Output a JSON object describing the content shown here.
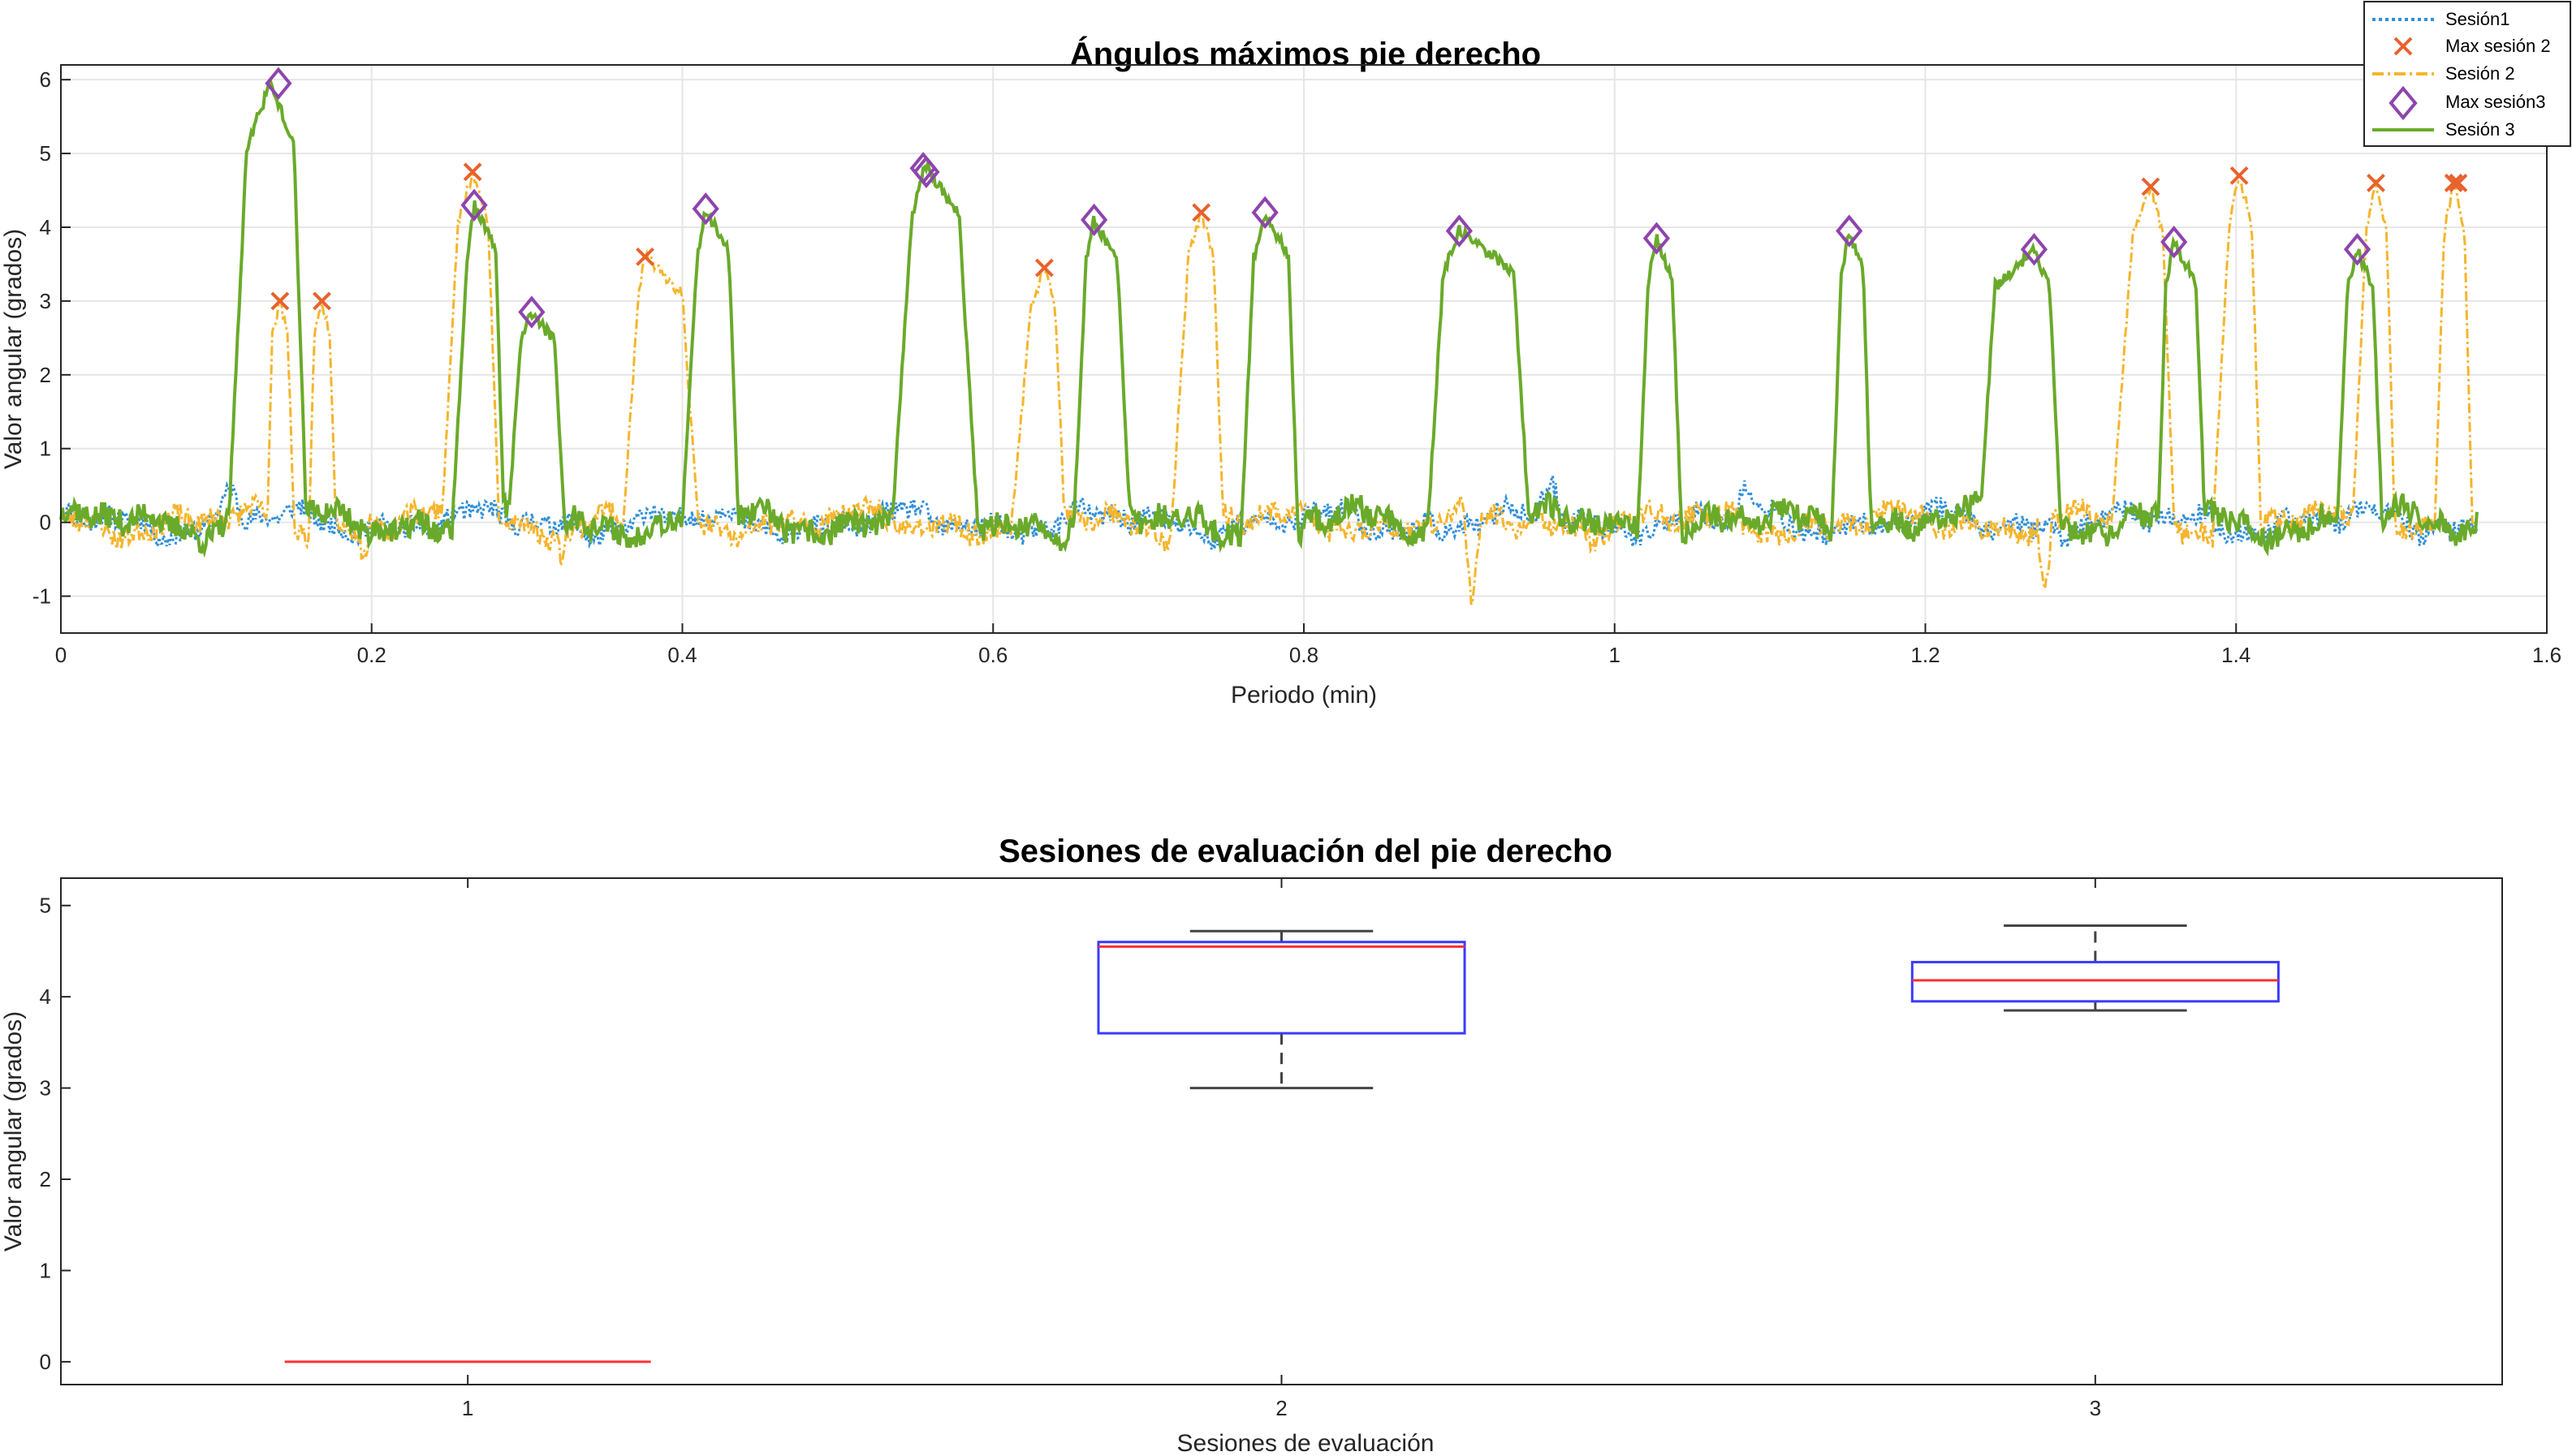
{
  "colors": {
    "sesion1": "#2f8fd8",
    "sesion2": "#f5b52c",
    "max_sesion2": "#e8622c",
    "max_sesion3": "#8e44ad",
    "sesion3": "#6aaa2a",
    "box_edge": "#3b3bff",
    "median": "#ff3030",
    "whisker": "#444444",
    "axis": "#262626",
    "grid": "#e6e6e6"
  },
  "chart_data": [
    {
      "type": "line",
      "title": "Ángulos máximos pie derecho",
      "xlabel": "Periodo (min)",
      "ylabel": "Valor angular (grados)",
      "xlim": [
        0,
        1.6
      ],
      "ylim": [
        -1.5,
        6.2
      ],
      "xticks": [
        "0",
        "0.2",
        "0.4",
        "0.6",
        "0.8",
        "1",
        "1.2",
        "1.4",
        "1.6"
      ],
      "yticks": [
        "-1",
        "0",
        "1",
        "2",
        "3",
        "4",
        "5",
        "6"
      ],
      "grid": true,
      "legend_position": "top-right",
      "legend": [
        "Sesión1",
        "Max sesión 2",
        "Sesión 2",
        "Max sesión3",
        "Sesión 3"
      ],
      "sesion3_peaks": [
        [
          0.108,
          0.12,
          0.135,
          0.15,
          0.158,
          5.95
        ],
        [
          0.252,
          0.262,
          0.266,
          0.28,
          0.285,
          4.3
        ],
        [
          0.288,
          0.296,
          0.303,
          0.318,
          0.324,
          2.85
        ],
        [
          0.4,
          0.41,
          0.415,
          0.43,
          0.436,
          4.25
        ],
        [
          0.535,
          0.548,
          0.556,
          0.578,
          0.59,
          4.85
        ],
        [
          0.652,
          0.66,
          0.665,
          0.68,
          0.688,
          4.1
        ],
        [
          0.76,
          0.768,
          0.775,
          0.79,
          0.796,
          4.2
        ],
        [
          0.88,
          0.89,
          0.9,
          0.935,
          0.945,
          3.95
        ],
        [
          1.015,
          1.022,
          1.027,
          1.037,
          1.043,
          3.85
        ],
        [
          1.14,
          1.146,
          1.151,
          1.16,
          1.165,
          3.95
        ],
        [
          1.235,
          1.245,
          1.27,
          1.28,
          1.287,
          3.7
        ],
        [
          1.35,
          1.355,
          1.36,
          1.374,
          1.38,
          3.8
        ],
        [
          1.465,
          1.472,
          1.478,
          1.488,
          1.494,
          3.7
        ]
      ],
      "sesion2_peaks": [
        [
          0.133,
          0.136,
          0.141,
          0.146,
          0.15,
          3.0
        ],
        [
          0.16,
          0.163,
          0.168,
          0.173,
          0.177,
          3.0
        ],
        [
          0.245,
          0.256,
          0.265,
          0.275,
          0.282,
          4.75
        ],
        [
          0.362,
          0.372,
          0.376,
          0.4,
          0.41,
          3.6
        ],
        [
          0.612,
          0.625,
          0.633,
          0.64,
          0.646,
          3.45
        ],
        [
          0.715,
          0.726,
          0.734,
          0.742,
          0.748,
          4.2
        ],
        [
          1.32,
          1.334,
          1.345,
          1.353,
          1.36,
          4.55
        ],
        [
          1.385,
          1.396,
          1.402,
          1.41,
          1.416,
          4.7
        ],
        [
          1.475,
          1.484,
          1.49,
          1.497,
          1.502,
          4.6
        ],
        [
          1.528,
          1.534,
          1.54,
          1.547,
          1.552,
          4.6
        ]
      ],
      "series": [
        {
          "name": "Max sesión 2",
          "marker": "x",
          "x": [
            0.141,
            0.168,
            0.265,
            0.376,
            0.633,
            0.734,
            1.345,
            1.402,
            1.49,
            1.54,
            1.543
          ],
          "y": [
            3.0,
            3.0,
            4.75,
            3.6,
            3.45,
            4.2,
            4.55,
            4.7,
            4.6,
            4.6,
            4.6
          ]
        },
        {
          "name": "Max sesión3",
          "marker": "diamond",
          "x": [
            0.14,
            0.266,
            0.303,
            0.415,
            0.555,
            0.557,
            0.665,
            0.775,
            0.9,
            1.027,
            1.151,
            1.27,
            1.36,
            1.478
          ],
          "y": [
            5.95,
            4.3,
            2.85,
            4.25,
            4.8,
            4.75,
            4.1,
            4.2,
            3.95,
            3.85,
            3.95,
            3.7,
            3.8,
            3.7
          ]
        }
      ]
    },
    {
      "type": "box",
      "title": "Sesiones de evaluación del pie derecho",
      "xlabel": "Sesiones de evaluación",
      "ylabel": "Valor angular (grados)",
      "categories": [
        "1",
        "2",
        "3"
      ],
      "ylim": [
        -0.25,
        5.3
      ],
      "yticks": [
        "0",
        "1",
        "2",
        "3",
        "4",
        "5"
      ],
      "boxes": [
        {
          "category": "1",
          "min": 0,
          "q1": 0,
          "median": 0,
          "q3": 0,
          "max": 0
        },
        {
          "category": "2",
          "min": 3.0,
          "q1": 3.6,
          "median": 4.55,
          "q3": 4.6,
          "max": 4.72
        },
        {
          "category": "3",
          "min": 3.85,
          "q1": 3.95,
          "median": 4.18,
          "q3": 4.38,
          "max": 4.78
        }
      ]
    }
  ]
}
